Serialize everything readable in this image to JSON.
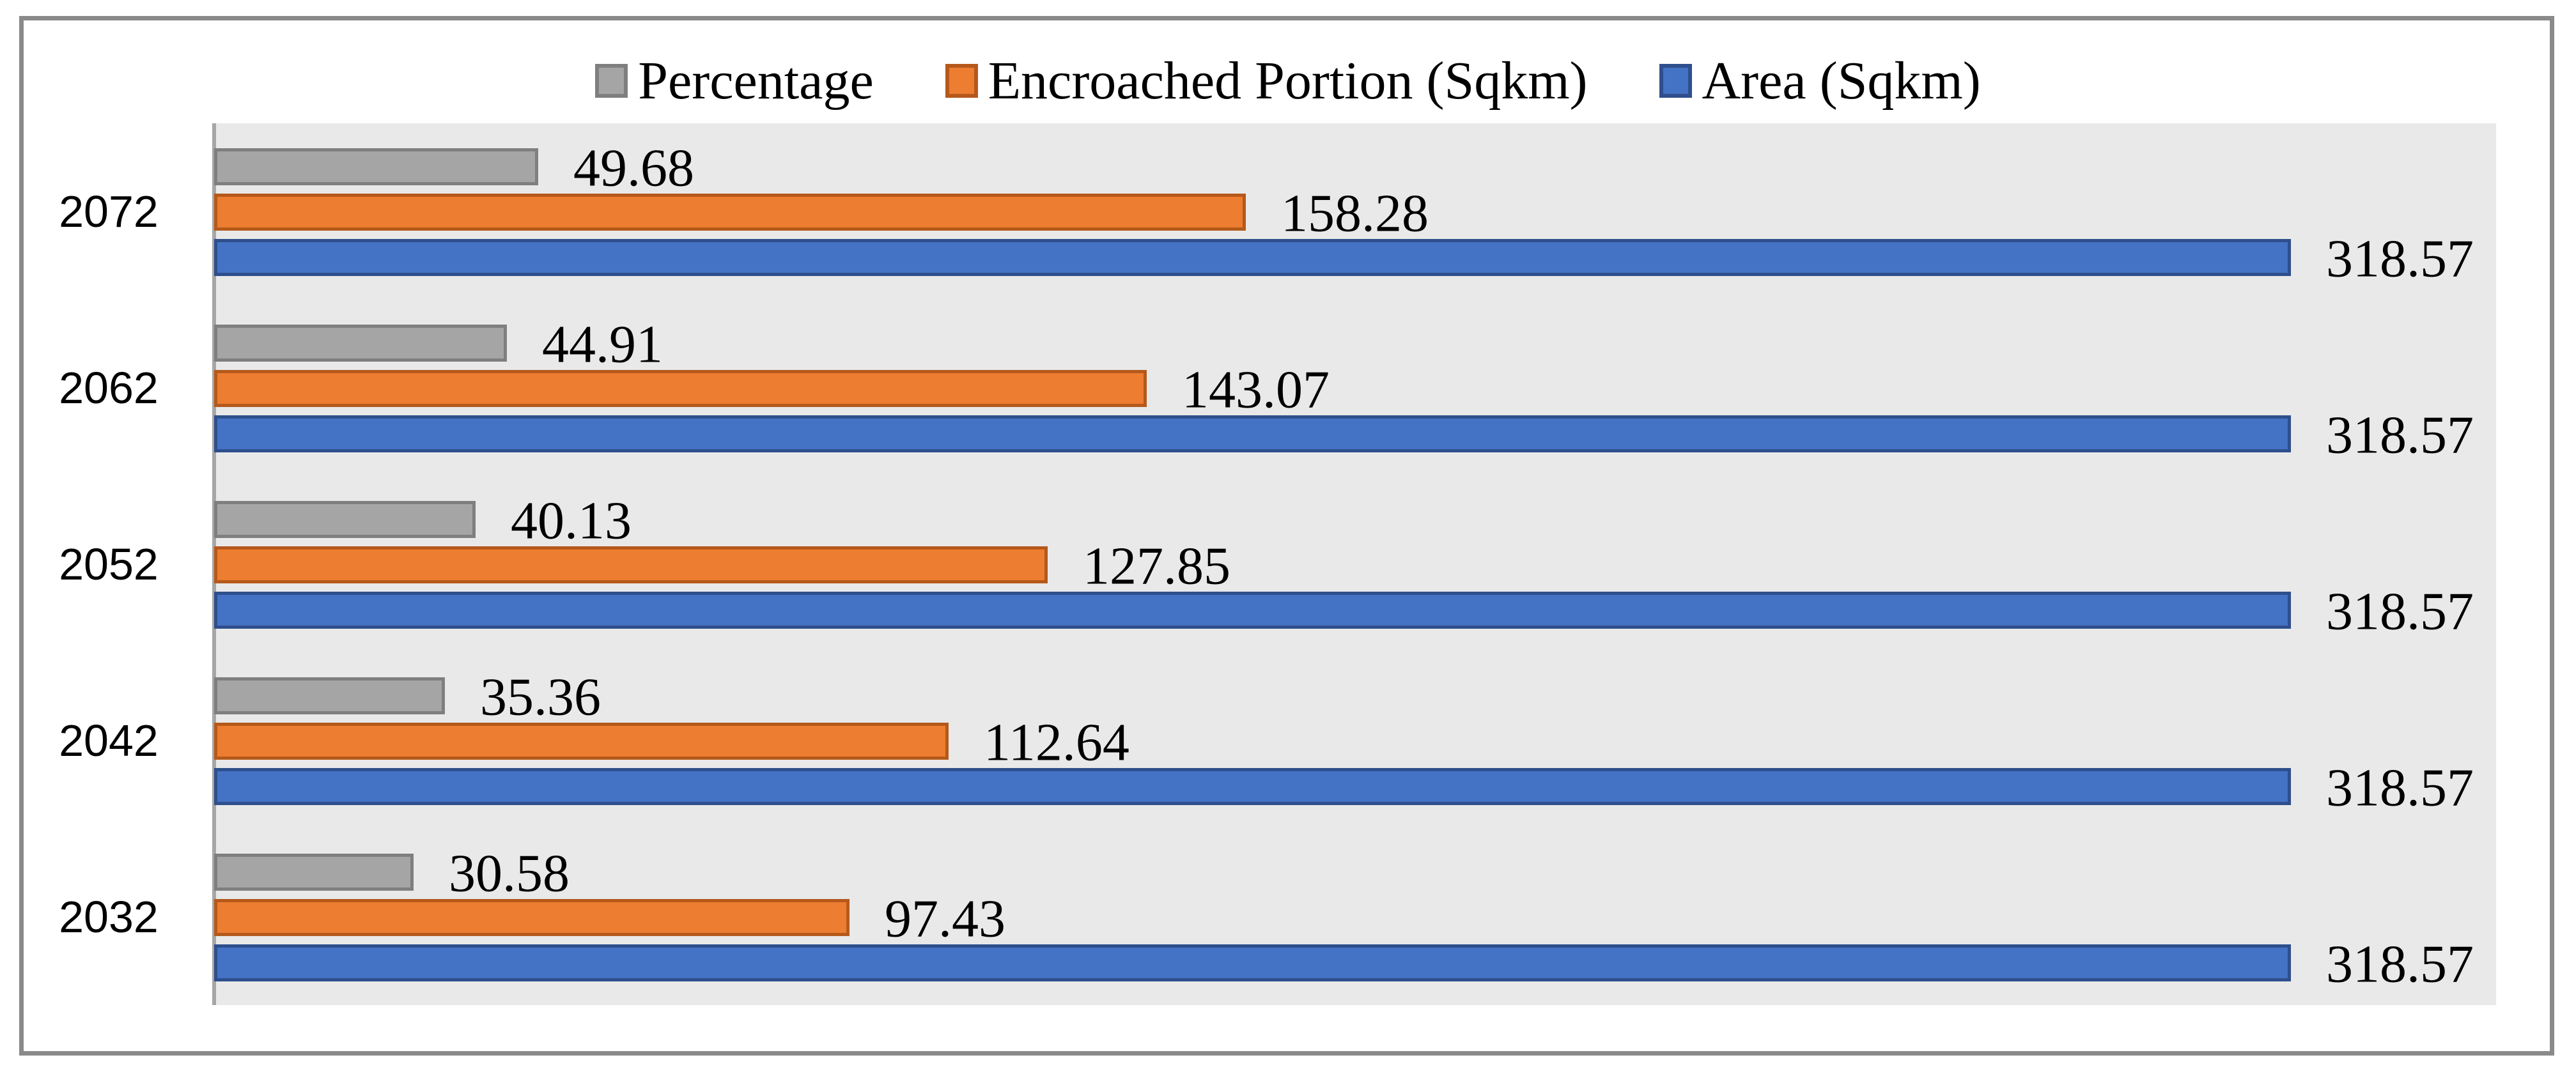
{
  "chart": {
    "background": "#FFFFFF",
    "frame_border_color": "#8A8A8A",
    "plot_background": "#E9E9E9",
    "axis_line_color": "#A6A6A6",
    "text_color": "#000000"
  },
  "legend": {
    "position": "top",
    "items": [
      "Percentage",
      "Encroached Portion (Sqkm)",
      "Area (Sqkm)"
    ]
  },
  "chart_data": {
    "type": "bar",
    "orientation": "horizontal",
    "title": "",
    "xlabel": "",
    "ylabel": "",
    "grid": false,
    "data_labels": true,
    "legend_position": "top",
    "xlim": [
      0,
      350
    ],
    "categories": [
      "2072",
      "2062",
      "2052",
      "2042",
      "2032"
    ],
    "series": [
      {
        "name": "Percentage",
        "color": "#A5A5A5",
        "border_color": "#7F7F7F",
        "values": [
          49.68,
          44.91,
          40.13,
          35.36,
          30.58
        ]
      },
      {
        "name": "Encroached Portion (Sqkm)",
        "color": "#ED7D31",
        "border_color": "#B5591B",
        "values": [
          158.28,
          143.07,
          127.85,
          112.64,
          97.43
        ]
      },
      {
        "name": "Area (Sqkm)",
        "color": "#4472C4",
        "border_color": "#2E4F8C",
        "values": [
          318.57,
          318.57,
          318.57,
          318.57,
          318.57
        ]
      }
    ]
  }
}
